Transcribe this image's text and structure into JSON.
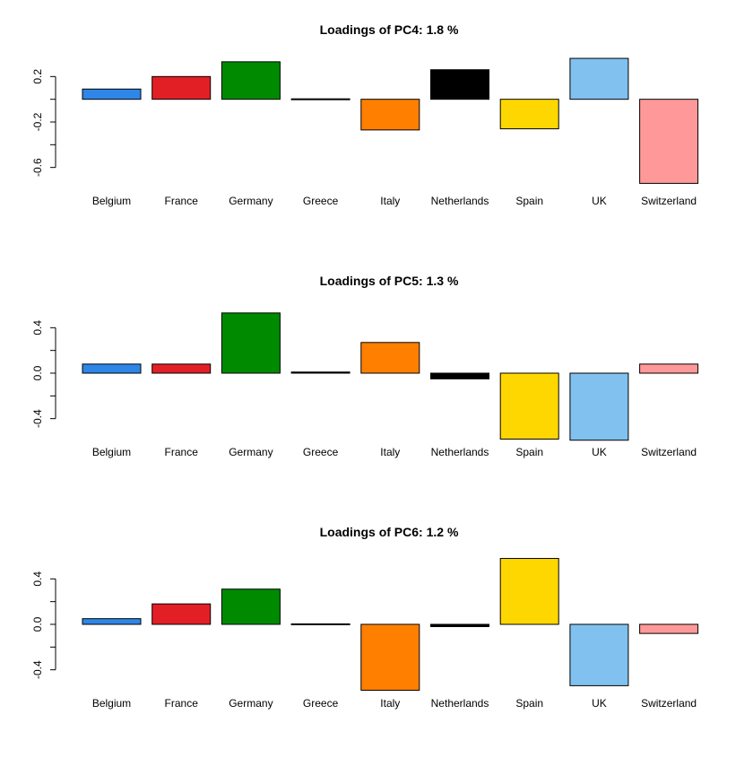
{
  "colors": [
    "#2E86E8",
    "#E31F26",
    "#008A00",
    "#000000",
    "#FF7F00",
    "#000000",
    "#FFD700",
    "#80C1EF",
    "#FF9999"
  ],
  "chart_data": [
    {
      "type": "bar",
      "title": "Loadings of PC4: 1.8 %",
      "categories": [
        "Belgium",
        "France",
        "Germany",
        "Greece",
        "Italy",
        "Netherlands",
        "Spain",
        "UK",
        "Switzerland"
      ],
      "values": [
        0.09,
        0.2,
        0.33,
        0.0,
        -0.27,
        0.26,
        -0.26,
        0.36,
        -0.74
      ],
      "yticks": [
        0.2,
        -0.2,
        -0.6
      ],
      "ytick_labels": [
        "0.2",
        "-0.2",
        "-0.6"
      ],
      "ylim": [
        -0.8,
        0.4
      ]
    },
    {
      "type": "bar",
      "title": "Loadings of PC5: 1.3 %",
      "categories": [
        "Belgium",
        "France",
        "Germany",
        "Greece",
        "Italy",
        "Netherlands",
        "Spain",
        "UK",
        "Switzerland"
      ],
      "values": [
        0.08,
        0.08,
        0.53,
        0.01,
        0.27,
        -0.05,
        -0.58,
        -0.59,
        0.08
      ],
      "yticks": [
        0.4,
        0.0,
        -0.4
      ],
      "ytick_labels": [
        "0.4",
        "0.0",
        "-0.4"
      ],
      "ylim": [
        -0.6,
        0.6
      ]
    },
    {
      "type": "bar",
      "title": "Loadings of PC6: 1.2 %",
      "categories": [
        "Belgium",
        "France",
        "Germany",
        "Greece",
        "Italy",
        "Netherlands",
        "Spain",
        "UK",
        "Switzerland"
      ],
      "values": [
        0.05,
        0.18,
        0.31,
        0.0,
        -0.58,
        -0.02,
        0.58,
        -0.54,
        -0.08
      ],
      "yticks": [
        0.4,
        0.0,
        -0.4
      ],
      "ytick_labels": [
        "0.4",
        "0.0",
        "-0.4"
      ],
      "ylim": [
        -0.6,
        0.6
      ]
    }
  ]
}
